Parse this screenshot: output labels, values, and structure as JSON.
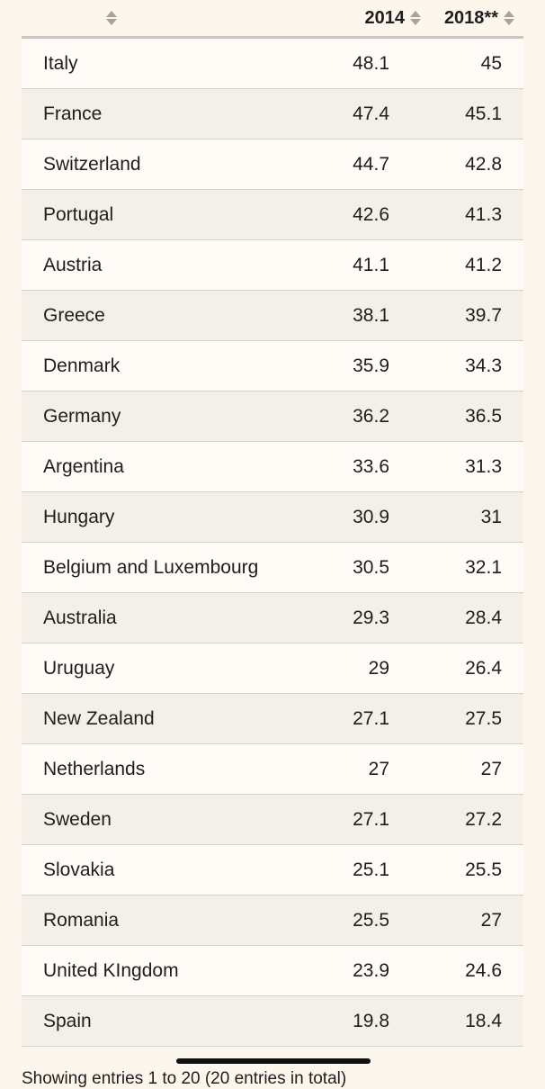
{
  "table": {
    "headers": {
      "country": "",
      "y2014": "2014",
      "y2018": "2018**"
    },
    "rows": [
      {
        "country": "Italy",
        "v2014": "48.1",
        "v2018": "45"
      },
      {
        "country": "France",
        "v2014": "47.4",
        "v2018": "45.1"
      },
      {
        "country": "Switzerland",
        "v2014": "44.7",
        "v2018": "42.8"
      },
      {
        "country": "Portugal",
        "v2014": "42.6",
        "v2018": "41.3"
      },
      {
        "country": "Austria",
        "v2014": "41.1",
        "v2018": "41.2"
      },
      {
        "country": "Greece",
        "v2014": "38.1",
        "v2018": "39.7"
      },
      {
        "country": "Denmark",
        "v2014": "35.9",
        "v2018": "34.3"
      },
      {
        "country": "Germany",
        "v2014": "36.2",
        "v2018": "36.5"
      },
      {
        "country": "Argentina",
        "v2014": "33.6",
        "v2018": "31.3"
      },
      {
        "country": "Hungary",
        "v2014": "30.9",
        "v2018": "31"
      },
      {
        "country": "Belgium and Luxembourg",
        "v2014": "30.5",
        "v2018": "32.1"
      },
      {
        "country": "Australia",
        "v2014": "29.3",
        "v2018": "28.4"
      },
      {
        "country": "Uruguay",
        "v2014": "29",
        "v2018": "26.4"
      },
      {
        "country": "New Zealand",
        "v2014": "27.1",
        "v2018": "27.5"
      },
      {
        "country": "Netherlands",
        "v2014": "27",
        "v2018": "27"
      },
      {
        "country": "Sweden",
        "v2014": "27.1",
        "v2018": "27.2"
      },
      {
        "country": "Slovakia",
        "v2014": "25.1",
        "v2018": "25.5"
      },
      {
        "country": "Romania",
        "v2014": "25.5",
        "v2018": "27"
      },
      {
        "country": "United KIngdom",
        "v2014": "23.9",
        "v2018": "24.6"
      },
      {
        "country": "Spain",
        "v2014": "19.8",
        "v2018": "18.4"
      }
    ]
  },
  "footer": {
    "text": "Showing entries 1 to 20 (20 entries in total)"
  },
  "icons": {
    "sort": "sort-updown-icon"
  },
  "colors": {
    "background": "#fcf6ed",
    "row_alt": "#f3f0ea",
    "text": "#1e1e1e"
  }
}
